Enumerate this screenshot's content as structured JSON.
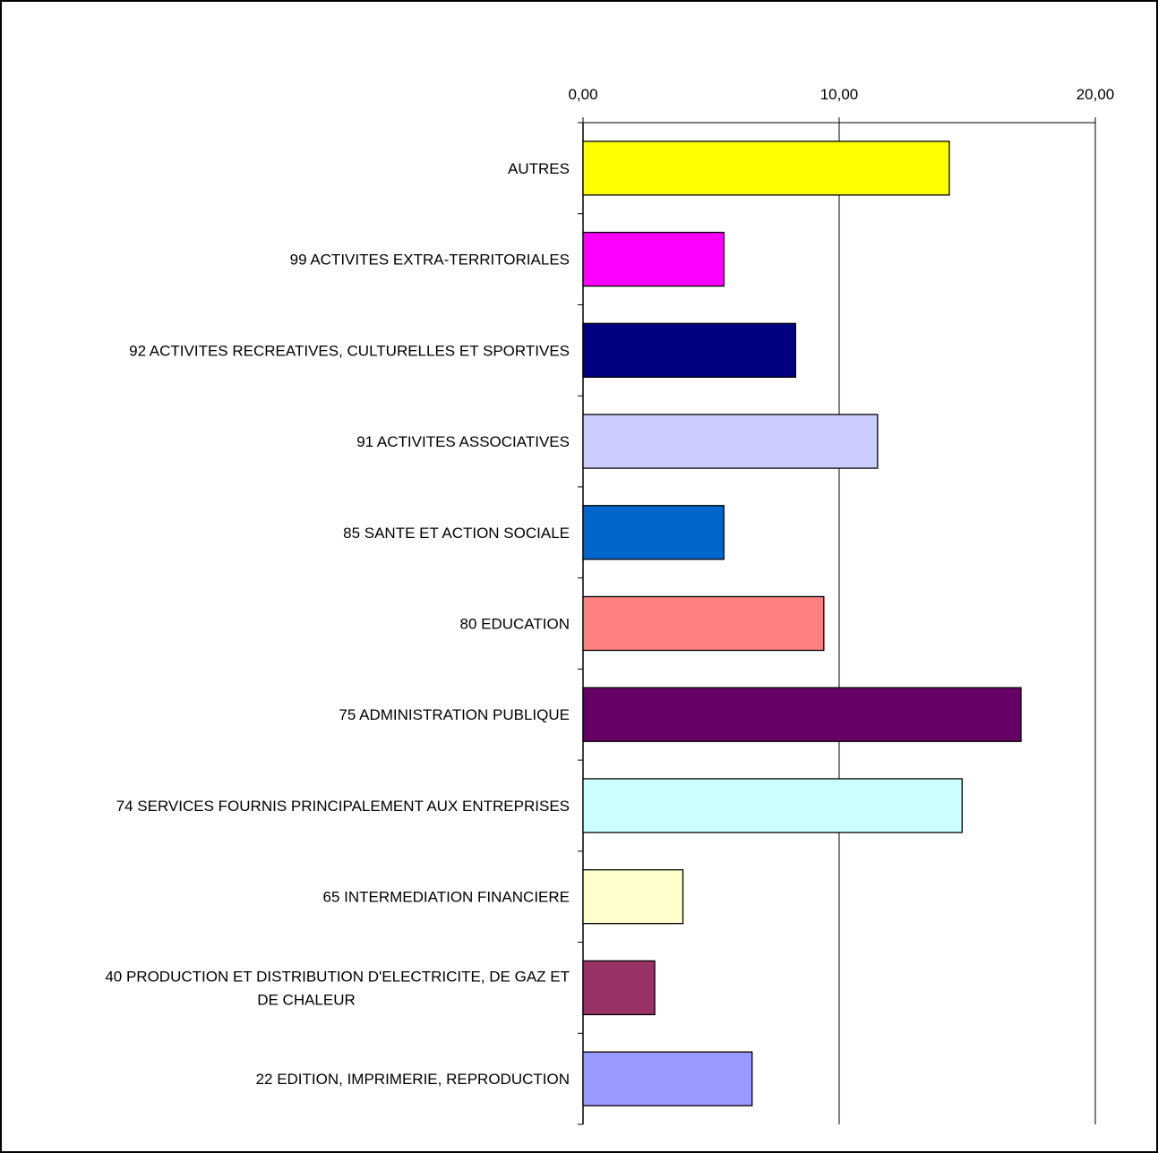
{
  "chart_data": {
    "type": "bar",
    "orientation": "horizontal",
    "title": "",
    "xlabel": "",
    "ylabel": "",
    "xlim": [
      0,
      20
    ],
    "x_ticks": [
      0,
      10,
      20
    ],
    "x_tick_labels": [
      "0,00",
      "10,00",
      "20,00"
    ],
    "x_axis_position": "top",
    "grid": "vertical major gridlines",
    "legend": "none",
    "categories": [
      "AUTRES",
      "99 ACTIVITES EXTRA-TERRITORIALES",
      "92 ACTIVITES RECREATIVES, CULTURELLES ET SPORTIVES",
      "91 ACTIVITES ASSOCIATIVES",
      "85 SANTE ET ACTION SOCIALE",
      "80 EDUCATION",
      "75 ADMINISTRATION PUBLIQUE",
      "74 SERVICES FOURNIS PRINCIPALEMENT AUX ENTREPRISES",
      "65 INTERMEDIATION FINANCIERE",
      "40 PRODUCTION ET DISTRIBUTION D'ELECTRICITE, DE GAZ ET DE CHALEUR",
      "22 EDITION, IMPRIMERIE, REPRODUCTION"
    ],
    "category_label_lines": [
      [
        "AUTRES"
      ],
      [
        "99 ACTIVITES EXTRA-TERRITORIALES"
      ],
      [
        "92 ACTIVITES RECREATIVES, CULTURELLES ET SPORTIVES"
      ],
      [
        "91 ACTIVITES ASSOCIATIVES"
      ],
      [
        "85 SANTE ET ACTION SOCIALE"
      ],
      [
        "80 EDUCATION"
      ],
      [
        "75 ADMINISTRATION PUBLIQUE"
      ],
      [
        "74 SERVICES FOURNIS PRINCIPALEMENT AUX ENTREPRISES"
      ],
      [
        "65 INTERMEDIATION FINANCIERE"
      ],
      [
        "40 PRODUCTION ET DISTRIBUTION D'ELECTRICITE, DE GAZ ET",
        "DE CHALEUR"
      ],
      [
        "22 EDITION, IMPRIMERIE, REPRODUCTION"
      ]
    ],
    "values": [
      14.3,
      5.5,
      8.3,
      11.5,
      5.5,
      9.4,
      17.1,
      14.8,
      3.9,
      2.8,
      6.6
    ],
    "colors": [
      "#FFFF00",
      "#FF00FF",
      "#000080",
      "#CCCCFF",
      "#0066CC",
      "#FF8080",
      "#660066",
      "#CCFFFF",
      "#FFFFCC",
      "#993366",
      "#9999FF"
    ]
  }
}
